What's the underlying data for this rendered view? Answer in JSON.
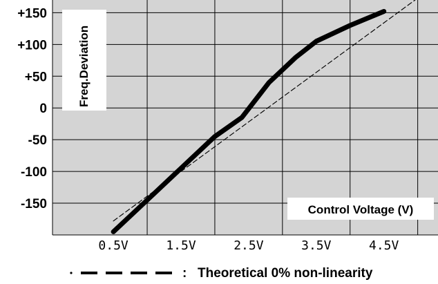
{
  "chart_data": {
    "type": "line",
    "ylabel": "Freq.Deviation",
    "xlabel": "Control Voltage (V)",
    "y_ticks": [
      "+150",
      "+100",
      "+50",
      "0",
      "-50",
      "-100",
      "-150"
    ],
    "x_ticks": [
      "0.5V",
      "1.5V",
      "2.5V",
      "3.5V",
      "4.5V"
    ],
    "x_tick_values": [
      0.5,
      1.5,
      2.5,
      3.5,
      4.5
    ],
    "y_tick_values": [
      150,
      100,
      50,
      0,
      -50,
      -100,
      -150
    ],
    "xlim": [
      -0.4,
      5.3
    ],
    "ylim": [
      -200,
      170
    ],
    "grid": true,
    "background_color": "#d4d4d4",
    "series": [
      {
        "name": "",
        "style": "solid-thick",
        "color": "#000000",
        "x": [
          0.5,
          1.0,
          1.5,
          2.0,
          2.4,
          2.8,
          3.2,
          3.5,
          4.0,
          4.5
        ],
        "y": [
          -195,
          -145,
          -95,
          -45,
          -15,
          40,
          80,
          105,
          130,
          152
        ]
      },
      {
        "name": "Theoretical 0% non-linearity",
        "style": "dashed",
        "color": "#000000",
        "x": [
          0.5,
          5.0
        ],
        "y": [
          -178,
          173
        ]
      }
    ],
    "legend": {
      "position": "bottom",
      "separator": ":",
      "text": "Theoretical 0% non-linearity"
    }
  }
}
